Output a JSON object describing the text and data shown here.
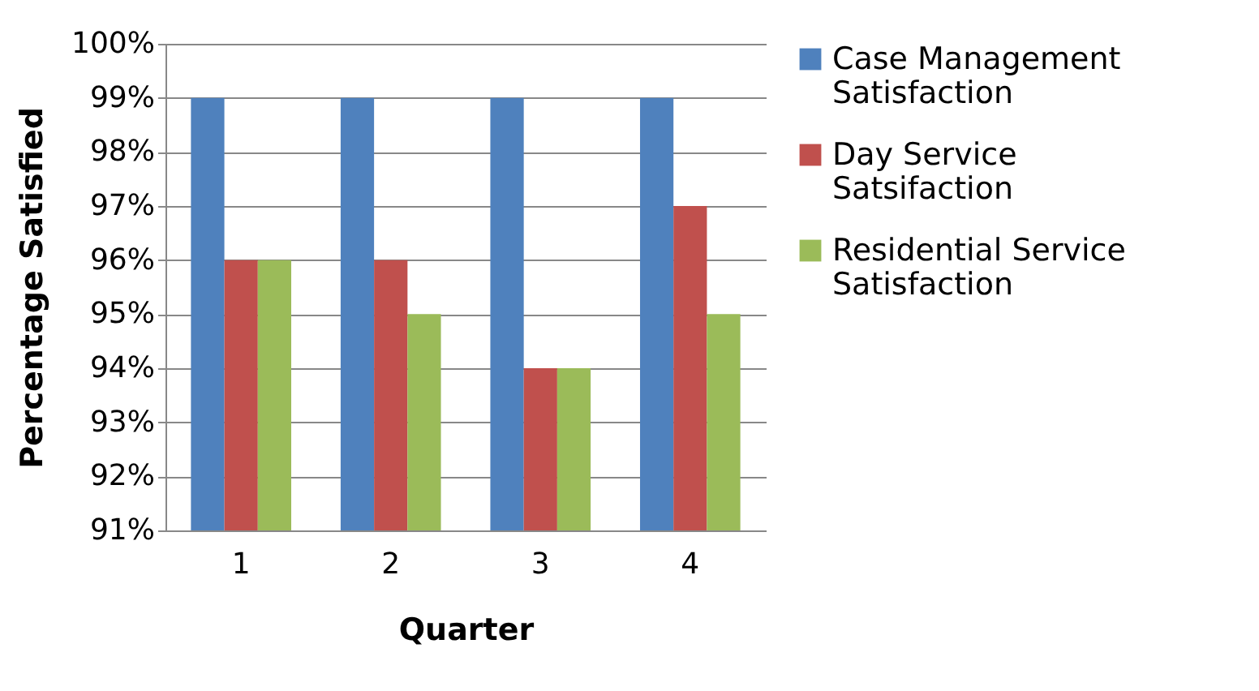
{
  "chart_data": {
    "type": "bar",
    "xlabel": "Quarter",
    "ylabel": "Percentage Satisfied",
    "categories": [
      "1",
      "2",
      "3",
      "4"
    ],
    "series": [
      {
        "name": "Case Management Satisfaction",
        "color": "#4f81bd",
        "values": [
          99,
          99,
          99,
          99
        ]
      },
      {
        "name": "Day Service Satsifaction",
        "color": "#c0504d",
        "values": [
          96,
          96,
          94,
          97
        ]
      },
      {
        "name": "Residential Service Satisfaction",
        "color": "#9bbb59",
        "values": [
          96,
          95,
          94,
          95
        ]
      }
    ],
    "ylim": [
      91,
      100
    ],
    "yticks": [
      {
        "value": 91,
        "label": "91%"
      },
      {
        "value": 92,
        "label": "92%"
      },
      {
        "value": 93,
        "label": "93%"
      },
      {
        "value": 94,
        "label": "94%"
      },
      {
        "value": 95,
        "label": "95%"
      },
      {
        "value": 96,
        "label": "96%"
      },
      {
        "value": 97,
        "label": "97%"
      },
      {
        "value": 98,
        "label": "98%"
      },
      {
        "value": 99,
        "label": "99%"
      },
      {
        "value": 100,
        "label": "100%"
      }
    ],
    "grid": "y",
    "legend": "right"
  }
}
